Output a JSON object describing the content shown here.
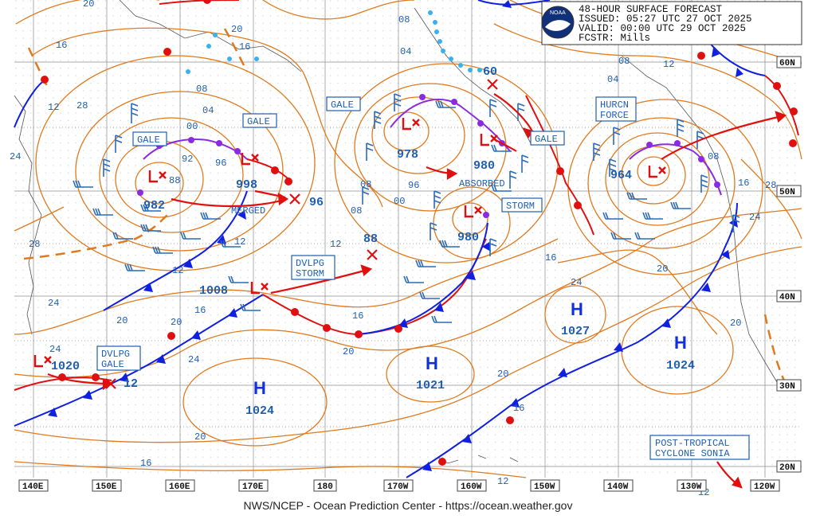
{
  "header": {
    "lines": [
      "48-HOUR SURFACE FORECAST",
      "ISSUED: 05:27 UTC 27 OCT 2025",
      "VALID:  00:00 UTC 29 OCT 2025",
      "FCSTR:  Mills"
    ],
    "logo_text": "NOAA"
  },
  "footer": "NWS/NCEP - Ocean Prediction Center - https://ocean.weather.gov",
  "lon_labels": [
    "140E",
    "150E",
    "160E",
    "170E",
    "180",
    "170W",
    "160W",
    "150W",
    "140W",
    "130W",
    "120W"
  ],
  "lat_labels": [
    "60N",
    "50N",
    "40N",
    "30N",
    "20N"
  ],
  "colors": {
    "isobar": "#e07a1e",
    "text": "#1f5fb0",
    "low": "#e01c1c",
    "high": "#1030e0",
    "cold_front": "#1020e0",
    "warm_front": "#e01010",
    "occluded": "#8a2be2",
    "wind_barb": "#2a6bb8",
    "ice_edge": "#3ab0ef"
  },
  "lows": [
    {
      "id": "low-982",
      "pressure": "982"
    },
    {
      "id": "low-998",
      "pressure": "998"
    },
    {
      "id": "low-978",
      "pressure": "978"
    },
    {
      "id": "low-980a",
      "pressure": "980"
    },
    {
      "id": "low-980b",
      "pressure": "980"
    },
    {
      "id": "low-964",
      "pressure": "964"
    },
    {
      "id": "low-1008",
      "pressure": "1008"
    },
    {
      "id": "low-1020",
      "pressure": "1020"
    }
  ],
  "highs": [
    {
      "id": "high-1024w",
      "pressure": "1024"
    },
    {
      "id": "high-1021",
      "pressure": "1021"
    },
    {
      "id": "high-1027",
      "pressure": "1027"
    },
    {
      "id": "high-1024e",
      "pressure": "1024"
    }
  ],
  "future_positions": [
    "96",
    "88",
    "60",
    "12"
  ],
  "warnings": {
    "gale_nw": "GALE",
    "gale_w": "GALE",
    "gale_c": "GALE",
    "gale_e": "GALE",
    "storm": "STORM",
    "hurricane_force": [
      "HURCN",
      "FORCE"
    ],
    "dvlpg_storm": [
      "DVLPG",
      "STORM"
    ],
    "dvlpg_gale": [
      "DVLPG",
      "GALE"
    ],
    "post_tropical": [
      "POST-TROPICAL",
      "CYCLONE SONIA"
    ]
  },
  "annotations": {
    "merged": "MERGED",
    "absorbed": "ABSORBED"
  },
  "isobar_labels": [
    "20",
    "16",
    "12",
    "08",
    "04",
    "00",
    "92",
    "96",
    "88",
    "08",
    "04",
    "00",
    "96",
    "08",
    "12",
    "16",
    "20",
    "24",
    "28",
    "24",
    "20",
    "24",
    "28",
    "16",
    "20",
    "24",
    "20",
    "16",
    "12",
    "16",
    "20",
    "24",
    "28",
    "12",
    "08",
    "04",
    "08",
    "12",
    "16",
    "20",
    "08",
    "16",
    "20",
    "24",
    "12",
    "20",
    "16",
    "12"
  ]
}
